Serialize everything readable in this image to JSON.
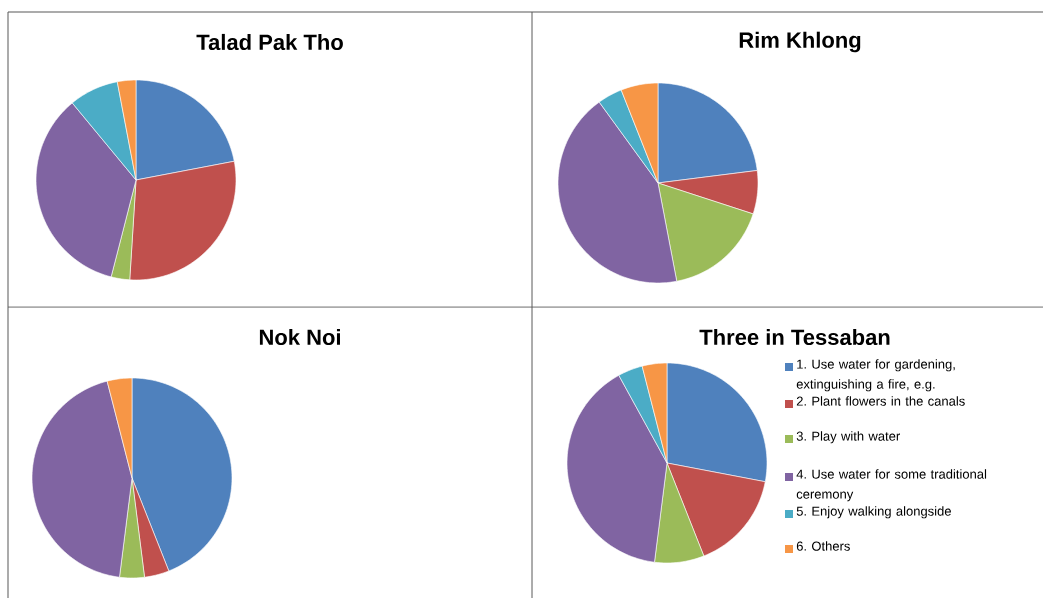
{
  "chart_data": [
    {
      "type": "pie",
      "title": "Talad Pak Tho",
      "categories": [
        null,
        null,
        null,
        null,
        null,
        null
      ],
      "values": [
        22,
        29,
        3,
        35,
        8,
        3
      ],
      "colors": [
        "#4f81bd",
        "#c0504d",
        "#9bbb59",
        "#8064a2",
        "#4bacc6",
        "#f79646"
      ],
      "legend": false
    },
    {
      "type": "pie",
      "title": "Rim Khlong",
      "categories": [
        null,
        null,
        null,
        null,
        null,
        null
      ],
      "values": [
        23,
        7,
        17,
        43,
        4,
        6
      ],
      "colors": [
        "#4f81bd",
        "#c0504d",
        "#9bbb59",
        "#8064a2",
        "#4bacc6",
        "#f79646"
      ],
      "legend": false
    },
    {
      "type": "pie",
      "title": "Nok Noi",
      "categories": [
        null,
        null,
        null,
        null,
        null,
        null
      ],
      "values": [
        44,
        4,
        4,
        44,
        0,
        4
      ],
      "colors": [
        "#4f81bd",
        "#c0504d",
        "#9bbb59",
        "#8064a2",
        "#4bacc6",
        "#f79646"
      ],
      "legend": false
    },
    {
      "type": "pie",
      "title": "Three in Tessaban",
      "categories": [
        "1. Use water for gardening, extinguishing a fire, e.g.",
        "2. Plant flowers in the canals",
        "3. Play with water",
        "4. Use water for some traditional ceremony",
        "5. Enjoy walking alongside",
        "6. Others"
      ],
      "values": [
        28,
        16,
        8,
        40,
        4,
        4
      ],
      "colors": [
        "#4f81bd",
        "#c0504d",
        "#9bbb59",
        "#8064a2",
        "#4bacc6",
        "#f79646"
      ],
      "legend": "right"
    }
  ]
}
